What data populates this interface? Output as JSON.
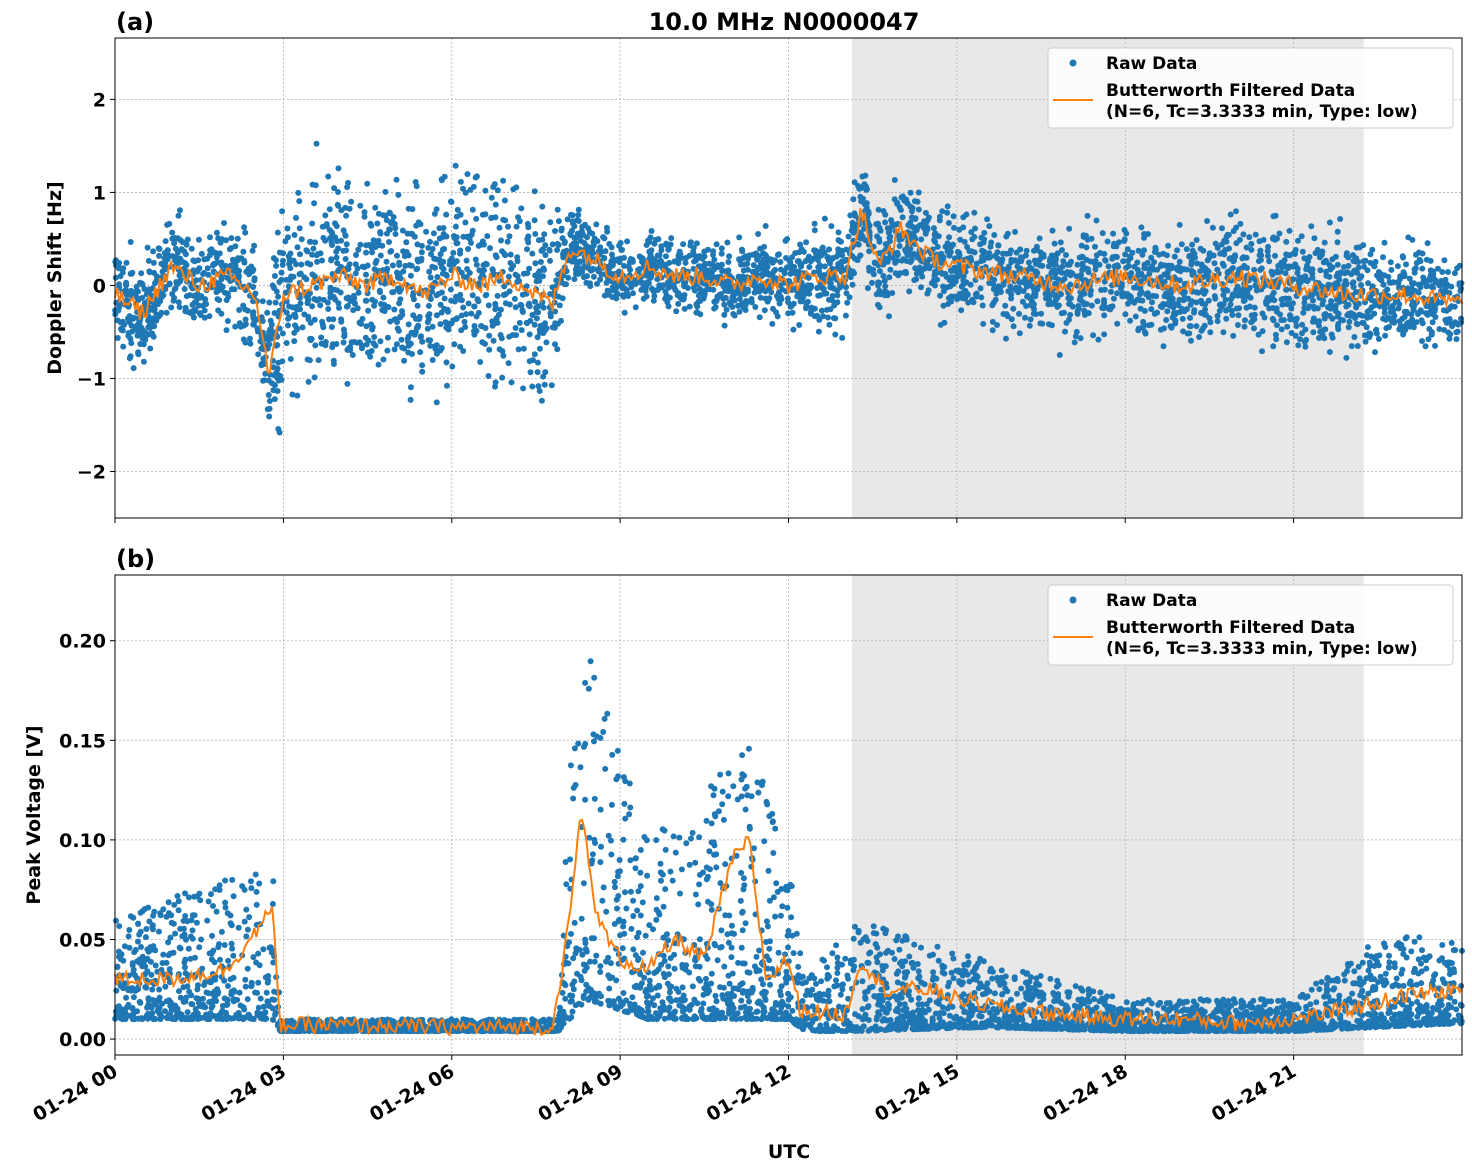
{
  "title": "10.0 MHz N0000047",
  "xlabel": "UTC",
  "x_tick_labels": [
    "01-24 00",
    "01-24 03",
    "01-24 06",
    "01-24 09",
    "01-24 12",
    "01-24 15",
    "01-24 18",
    "01-24 21"
  ],
  "colors": {
    "raw": "#1f77b4",
    "filtered": "#ff7f0e",
    "shade": "#e8e8e8",
    "grid": "#b0b0b0"
  },
  "chart_data": [
    {
      "type": "scatter",
      "panel_label": "(a)",
      "ylabel": "Doppler Shift [Hz]",
      "xlim_hours_utc": [
        0,
        24
      ],
      "ylim": [
        -2.5,
        2.66
      ],
      "y_ticks": [
        -2,
        -1,
        0,
        1,
        2
      ],
      "y_tick_labels": [
        "−2",
        "−1",
        "0",
        "1",
        "2"
      ],
      "grid": true,
      "legend_placement": "upper right",
      "shaded_interval_hours_utc": [
        13.13,
        22.25
      ],
      "legend": [
        "Raw Data",
        "Butterworth Filtered Data",
        "(N=6, Tc=3.3333 min, Type: low)"
      ],
      "filtered_series": {
        "name": "Butterworth Filtered Data (N=6, Tc=3.3333 min, Type: low)",
        "x_hours": [
          0,
          0.5,
          1,
          1.5,
          2,
          2.5,
          2.75,
          3,
          3.5,
          4,
          4.5,
          5,
          5.5,
          6,
          6.5,
          7,
          7.5,
          7.8,
          8.1,
          8.5,
          9,
          9.5,
          10,
          10.5,
          11,
          11.5,
          12,
          12.5,
          13,
          13.3,
          13.6,
          14,
          14.5,
          15,
          16,
          17,
          18,
          19,
          20,
          21,
          22,
          23,
          24
        ],
        "y": [
          -0.1,
          -0.3,
          0.2,
          0.0,
          0.1,
          -0.1,
          -1.0,
          -0.1,
          0.0,
          0.1,
          0.0,
          0.1,
          -0.1,
          0.1,
          0.0,
          0.1,
          -0.1,
          -0.2,
          0.4,
          0.3,
          0.1,
          0.2,
          0.1,
          0.1,
          0.0,
          0.1,
          0.0,
          0.1,
          0.1,
          0.8,
          0.2,
          0.6,
          0.3,
          0.2,
          0.1,
          0.0,
          0.1,
          0.0,
          0.1,
          0.0,
          -0.1,
          -0.1,
          -0.2
        ]
      },
      "raw_series": {
        "name": "Raw Data",
        "band_x_hours": [
          0,
          2.7,
          2.8,
          7.9,
          8.0,
          12.0,
          13.0,
          15.0,
          22.0,
          24
        ],
        "band_halfwidth": [
          0.6,
          0.6,
          1.2,
          1.2,
          0.4,
          0.45,
          0.6,
          0.6,
          0.7,
          0.5
        ]
      }
    },
    {
      "type": "scatter",
      "panel_label": "(b)",
      "ylabel": "Peak Voltage [V]",
      "xlim_hours_utc": [
        0,
        24
      ],
      "ylim": [
        -0.008,
        0.233
      ],
      "y_ticks": [
        0,
        0.05,
        0.1,
        0.15,
        0.2
      ],
      "y_tick_labels": [
        "0.00",
        "0.05",
        "0.10",
        "0.15",
        "0.20"
      ],
      "grid": true,
      "legend_placement": "upper right",
      "shaded_interval_hours_utc": [
        13.13,
        22.25
      ],
      "legend": [
        "Raw Data",
        "Butterworth Filtered Data",
        "(N=6, Tc=3.3333 min, Type: low)"
      ],
      "filtered_series": {
        "name": "Butterworth Filtered Data (N=6, Tc=3.3333 min, Type: low)",
        "x_hours": [
          0,
          1,
          2,
          2.8,
          2.95,
          4,
          6,
          7.8,
          8.1,
          8.3,
          8.6,
          9,
          9.5,
          10,
          10.5,
          11,
          11.3,
          11.6,
          12,
          12.2,
          13,
          13.3,
          13.7,
          14.5,
          15,
          16,
          17,
          18,
          19,
          20,
          21,
          22,
          23,
          24
        ],
        "y": [
          0.03,
          0.03,
          0.035,
          0.065,
          0.007,
          0.007,
          0.006,
          0.006,
          0.06,
          0.115,
          0.06,
          0.04,
          0.035,
          0.05,
          0.04,
          0.09,
          0.1,
          0.03,
          0.04,
          0.015,
          0.012,
          0.04,
          0.025,
          0.025,
          0.02,
          0.015,
          0.012,
          0.01,
          0.01,
          0.008,
          0.01,
          0.015,
          0.022,
          0.025
        ]
      },
      "raw_series": {
        "name": "Raw Data",
        "band_x_hours": [
          0,
          2.8,
          2.95,
          7.9,
          8.1,
          8.4,
          9.5,
          11.3,
          12.0,
          12.3,
          13.2,
          15.5,
          18,
          21,
          22.5,
          24
        ],
        "band_lo": [
          0.01,
          0.01,
          0.004,
          0.004,
          0.01,
          0.02,
          0.01,
          0.01,
          0.01,
          0.004,
          0.004,
          0.006,
          0.004,
          0.004,
          0.006,
          0.008
        ],
        "band_hi": [
          0.06,
          0.09,
          0.01,
          0.01,
          0.14,
          0.2,
          0.1,
          0.15,
          0.09,
          0.03,
          0.06,
          0.04,
          0.02,
          0.02,
          0.05,
          0.055
        ]
      }
    }
  ]
}
